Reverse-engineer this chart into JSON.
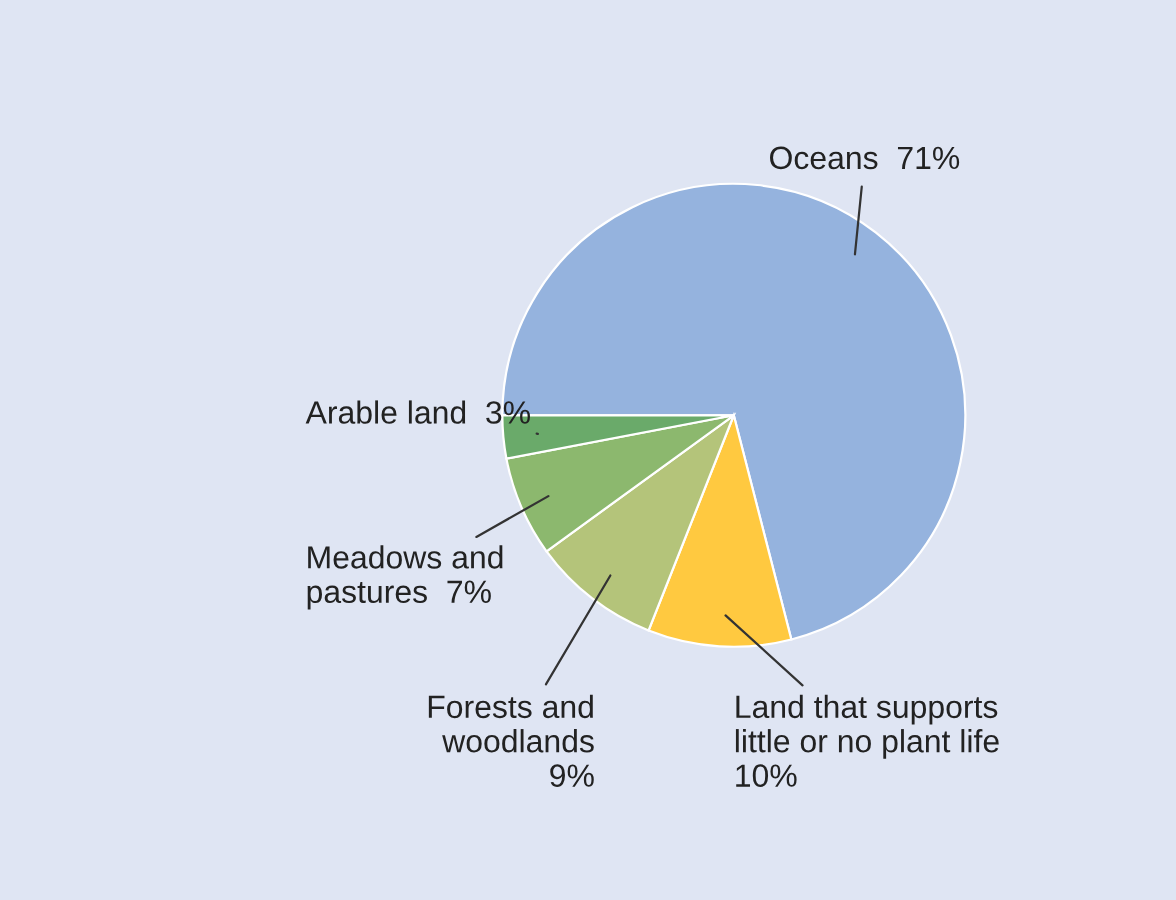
{
  "chart_data": {
    "type": "pie",
    "categories": [
      "Oceans",
      "Land that supports\nlittle or no plant life",
      "Forests and\nwoodlands",
      "Meadows and\npastures",
      "Arable land"
    ],
    "values": [
      71,
      10,
      9,
      7,
      3
    ],
    "value_labels": [
      "71%",
      "10%",
      "9%",
      "7%",
      "3%"
    ],
    "colors": [
      "#95b3de",
      "#ffc940",
      "#b4c47a",
      "#8cb86e",
      "#6aaa6a"
    ],
    "legend": false
  }
}
